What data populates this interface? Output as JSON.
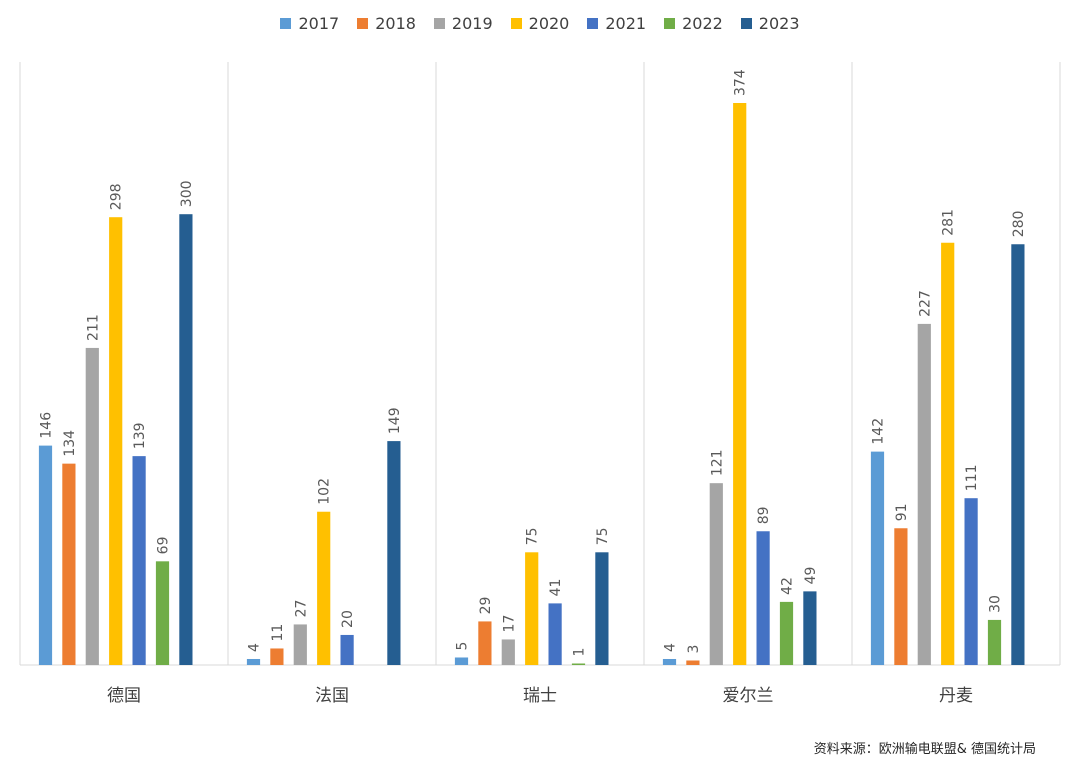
{
  "chart_data": {
    "type": "bar",
    "title": "",
    "xlabel": "",
    "ylabel": "",
    "ylim": [
      0,
      400
    ],
    "grid": false,
    "legend_position": "top",
    "categories": [
      "德国",
      "法国",
      "瑞士",
      "爱尔兰",
      "丹麦"
    ],
    "series": [
      {
        "name": "2017",
        "color": "#5B9BD5",
        "values": [
          146,
          4,
          5,
          4,
          142
        ]
      },
      {
        "name": "2018",
        "color": "#ED7D31",
        "values": [
          134,
          11,
          29,
          3,
          91
        ]
      },
      {
        "name": "2019",
        "color": "#A5A5A5",
        "values": [
          211,
          27,
          17,
          121,
          227
        ]
      },
      {
        "name": "2020",
        "color": "#FFC000",
        "values": [
          298,
          102,
          75,
          374,
          281
        ]
      },
      {
        "name": "2021",
        "color": "#4472C4",
        "values": [
          139,
          20,
          41,
          89,
          111
        ]
      },
      {
        "name": "2022",
        "color": "#70AD47",
        "values": [
          69,
          null,
          1,
          42,
          30
        ]
      },
      {
        "name": "2023",
        "color": "#255E91",
        "values": [
          300,
          149,
          75,
          49,
          280
        ]
      }
    ]
  },
  "source_note": "资料来源：欧洲输电联盟& 德国统计局"
}
